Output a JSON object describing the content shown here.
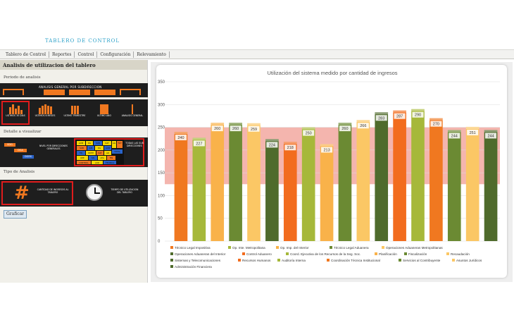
{
  "app": {
    "title": "TABLERO DE CONTROL"
  },
  "menu": [
    "Tablero de Control",
    "Reportes",
    "Control",
    "Configuración",
    "Relevamiento"
  ],
  "panel": {
    "title": "Analisis de utilizacion del tablero",
    "periodo_label": "Periodo de analisis",
    "general_title": "ANALISIS GENERAL POR SUBDIRECCION",
    "periods": [
      "ULTIMOS 30 DIAS",
      "ULTIMOS 6 MESES",
      "ULTIMO TRIMESTRE",
      "ULTIMO AÑO",
      "ANALISIS GENERAL"
    ],
    "detalle_label": "Detalle a visualizar",
    "stairs": [
      "SDG",
      "DGA",
      "DGRS"
    ],
    "detail_labels": [
      "NIVEL POR DIRECCIONES GENERALES",
      "TODAS LAS SUB DIRECCIONES"
    ],
    "grid": [
      "ADM",
      "DG",
      "SUB",
      "DAT",
      "AG",
      "TOT",
      "SUB",
      "JUR",
      "DG",
      "ADM",
      "TRI",
      "RRHH",
      "DAT",
      "AD",
      "TOTAL",
      "OPE",
      "SIS",
      "LEG",
      "FIN",
      "CONTROL",
      "AUD",
      "TECNICA"
    ],
    "tipo_label": "Tipo de Analisis",
    "analysis_labels": [
      "CANTIDAD DE INGRESOS AL TABLERO",
      "TIEMPO DE UTILIZACION DEL TABLERO"
    ],
    "button": "Graficar"
  },
  "colors": {
    "orange": "#f07820",
    "dark_orange": "#f26c1e",
    "olive": "#a6b83a",
    "light_orange": "#f9b24a",
    "dark_green": "#4f6b2c",
    "band": "#f4b5ae"
  },
  "chart_data": {
    "type": "bar",
    "title": "Utilización del sistema medido por cantidad de ingresos",
    "ylim": [
      0,
      350
    ],
    "yticks": [
      0,
      50,
      100,
      150,
      200,
      250,
      300,
      350
    ],
    "band": [
      125,
      250
    ],
    "grid": true,
    "legend_position": "bottom",
    "series": [
      {
        "name": "Técnico Legal Impositiva",
        "value": 240,
        "color": "#f07820"
      },
      {
        "name": "Op. Inte. Metropolitana",
        "value": 227,
        "color": "#a6b83a"
      },
      {
        "name": "Op. Imp. del Interior",
        "value": 260,
        "color": "#f9b24a"
      },
      {
        "name": "Técnico Legal Aduanera",
        "value": 260,
        "color": "#6b8a33"
      },
      {
        "name": "Operaciones Aduaneras Metropolitanas",
        "value": 259,
        "color": "#fbc765"
      },
      {
        "name": "Operaciones Aduaneras del Interior",
        "value": 224,
        "color": "#4f6b2c"
      },
      {
        "name": "Control Aduanero",
        "value": 218,
        "color": "#f26c1e"
      },
      {
        "name": "Coord. Ejecutiva de los Recursos de la Seg. Soc.",
        "value": 250,
        "color": "#a6b83a"
      },
      {
        "name": "Planificación",
        "value": 213,
        "color": "#f9b24a"
      },
      {
        "name": "Fiscalización",
        "value": 260,
        "color": "#6b8a33"
      },
      {
        "name": "Recaudación",
        "value": 266,
        "color": "#fbc765"
      },
      {
        "name": "Sistemas y Telecomunicaciones",
        "value": 283,
        "color": "#4f6b2c"
      },
      {
        "name": "Recursos Humanos",
        "value": 287,
        "color": "#f26c1e"
      },
      {
        "name": "Auditoría Interna",
        "value": 290,
        "color": "#a6b83a"
      },
      {
        "name": "Coordinación Técnica Institucional",
        "value": 270,
        "color": "#f07820"
      },
      {
        "name": "Servicios al Contribuyente",
        "value": 244,
        "color": "#6b8a33"
      },
      {
        "name": "Asuntos Jurídicos",
        "value": 251,
        "color": "#fbc765"
      },
      {
        "name": "Administración Financiera",
        "value": 244,
        "color": "#4f6b2c"
      }
    ]
  }
}
